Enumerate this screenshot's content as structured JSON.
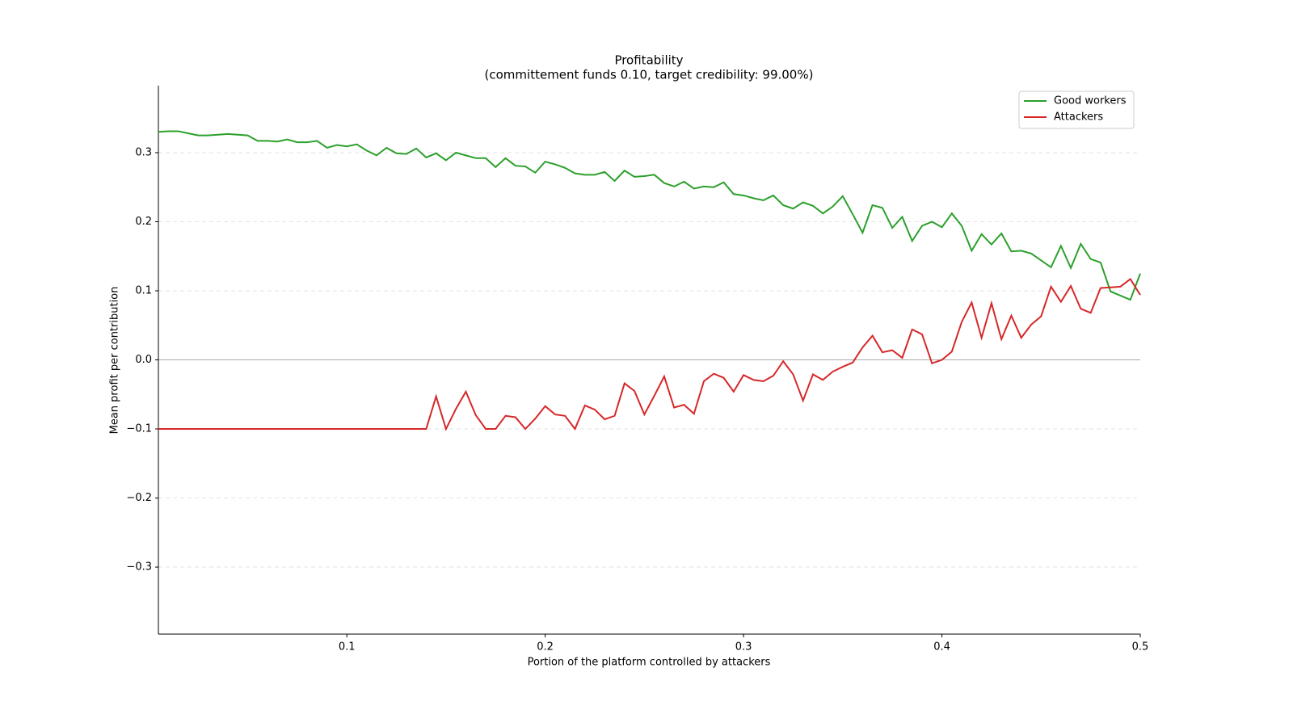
{
  "chart_data": {
    "type": "line",
    "title": "Profitability",
    "subtitle": "(committement funds 0.10, target credibility: 99.00%)",
    "xlabel": "Portion of the platform controlled by attackers",
    "ylabel": "Mean profit per contribution",
    "x": [
      0.005,
      0.01,
      0.015,
      0.02,
      0.025,
      0.03,
      0.035,
      0.04,
      0.045,
      0.05,
      0.055,
      0.06,
      0.065,
      0.07,
      0.075,
      0.08,
      0.085,
      0.09,
      0.095,
      0.1,
      0.105,
      0.11,
      0.115,
      0.12,
      0.125,
      0.13,
      0.135,
      0.14,
      0.145,
      0.15,
      0.155,
      0.16,
      0.165,
      0.17,
      0.175,
      0.18,
      0.185,
      0.19,
      0.195,
      0.2,
      0.205,
      0.21,
      0.215,
      0.22,
      0.225,
      0.23,
      0.235,
      0.24,
      0.245,
      0.25,
      0.255,
      0.26,
      0.265,
      0.27,
      0.275,
      0.28,
      0.285,
      0.29,
      0.295,
      0.3,
      0.305,
      0.31,
      0.315,
      0.32,
      0.325,
      0.33,
      0.335,
      0.34,
      0.345,
      0.35,
      0.355,
      0.36,
      0.365,
      0.37,
      0.375,
      0.38,
      0.385,
      0.39,
      0.395,
      0.4,
      0.405,
      0.41,
      0.415,
      0.42,
      0.425,
      0.43,
      0.435,
      0.44,
      0.445,
      0.45,
      0.455,
      0.46,
      0.465,
      0.47,
      0.475,
      0.48,
      0.485,
      0.49,
      0.495,
      0.5
    ],
    "series": [
      {
        "name": "Good workers",
        "color": "#2ca02c",
        "values": [
          0.33,
          0.331,
          0.331,
          0.328,
          0.325,
          0.325,
          0.326,
          0.327,
          0.326,
          0.325,
          0.317,
          0.317,
          0.316,
          0.319,
          0.315,
          0.315,
          0.317,
          0.307,
          0.311,
          0.309,
          0.312,
          0.303,
          0.296,
          0.307,
          0.299,
          0.298,
          0.306,
          0.293,
          0.299,
          0.289,
          0.3,
          0.296,
          0.292,
          0.292,
          0.279,
          0.292,
          0.281,
          0.28,
          0.271,
          0.287,
          0.283,
          0.278,
          0.27,
          0.268,
          0.268,
          0.272,
          0.259,
          0.274,
          0.265,
          0.266,
          0.268,
          0.256,
          0.251,
          0.258,
          0.248,
          0.251,
          0.25,
          0.257,
          0.24,
          0.238,
          0.234,
          0.231,
          0.238,
          0.224,
          0.219,
          0.228,
          0.223,
          0.212,
          0.222,
          0.237,
          0.211,
          0.184,
          0.224,
          0.22,
          0.191,
          0.207,
          0.172,
          0.194,
          0.2,
          0.192,
          0.212,
          0.194,
          0.158,
          0.182,
          0.167,
          0.183,
          0.157,
          0.158,
          0.154,
          0.144,
          0.134,
          0.165,
          0.133,
          0.168,
          0.146,
          0.141,
          0.099,
          0.093,
          0.087,
          0.125
        ]
      },
      {
        "name": "Attackers",
        "color": "#d62728",
        "values": [
          -0.1,
          -0.1,
          -0.1,
          -0.1,
          -0.1,
          -0.1,
          -0.1,
          -0.1,
          -0.1,
          -0.1,
          -0.1,
          -0.1,
          -0.1,
          -0.1,
          -0.1,
          -0.1,
          -0.1,
          -0.1,
          -0.1,
          -0.1,
          -0.1,
          -0.1,
          -0.1,
          -0.1,
          -0.1,
          -0.1,
          -0.1,
          -0.1,
          -0.053,
          -0.1,
          -0.071,
          -0.046,
          -0.08,
          -0.1,
          -0.1,
          -0.081,
          -0.083,
          -0.1,
          -0.085,
          -0.067,
          -0.079,
          -0.081,
          -0.1,
          -0.066,
          -0.072,
          -0.086,
          -0.081,
          -0.034,
          -0.045,
          -0.079,
          -0.052,
          -0.024,
          -0.069,
          -0.065,
          -0.078,
          -0.031,
          -0.02,
          -0.026,
          -0.046,
          -0.022,
          -0.029,
          -0.031,
          -0.023,
          -0.002,
          -0.021,
          -0.059,
          -0.021,
          -0.029,
          -0.017,
          -0.01,
          -0.004,
          0.018,
          0.035,
          0.011,
          0.014,
          0.003,
          0.044,
          0.037,
          -0.005,
          0.0,
          0.012,
          0.055,
          0.083,
          0.032,
          0.082,
          0.03,
          0.064,
          0.032,
          0.051,
          0.063,
          0.106,
          0.084,
          0.107,
          0.074,
          0.068,
          0.104,
          0.105,
          0.106,
          0.117,
          0.094
        ]
      }
    ],
    "xlim": [
      0.005,
      0.5
    ],
    "ylim": [
      -0.397,
      0.397
    ],
    "xticks": [
      0.1,
      0.2,
      0.3,
      0.4,
      0.5
    ],
    "yticks": [
      {
        "value": -0.3,
        "label": "−0.3"
      },
      {
        "value": -0.2,
        "label": "−0.2"
      },
      {
        "value": -0.1,
        "label": "−0.1"
      },
      {
        "value": 0,
        "label": "0.0"
      },
      0.1,
      0.2,
      0.3
    ],
    "grid": true,
    "legend": "upper right"
  }
}
